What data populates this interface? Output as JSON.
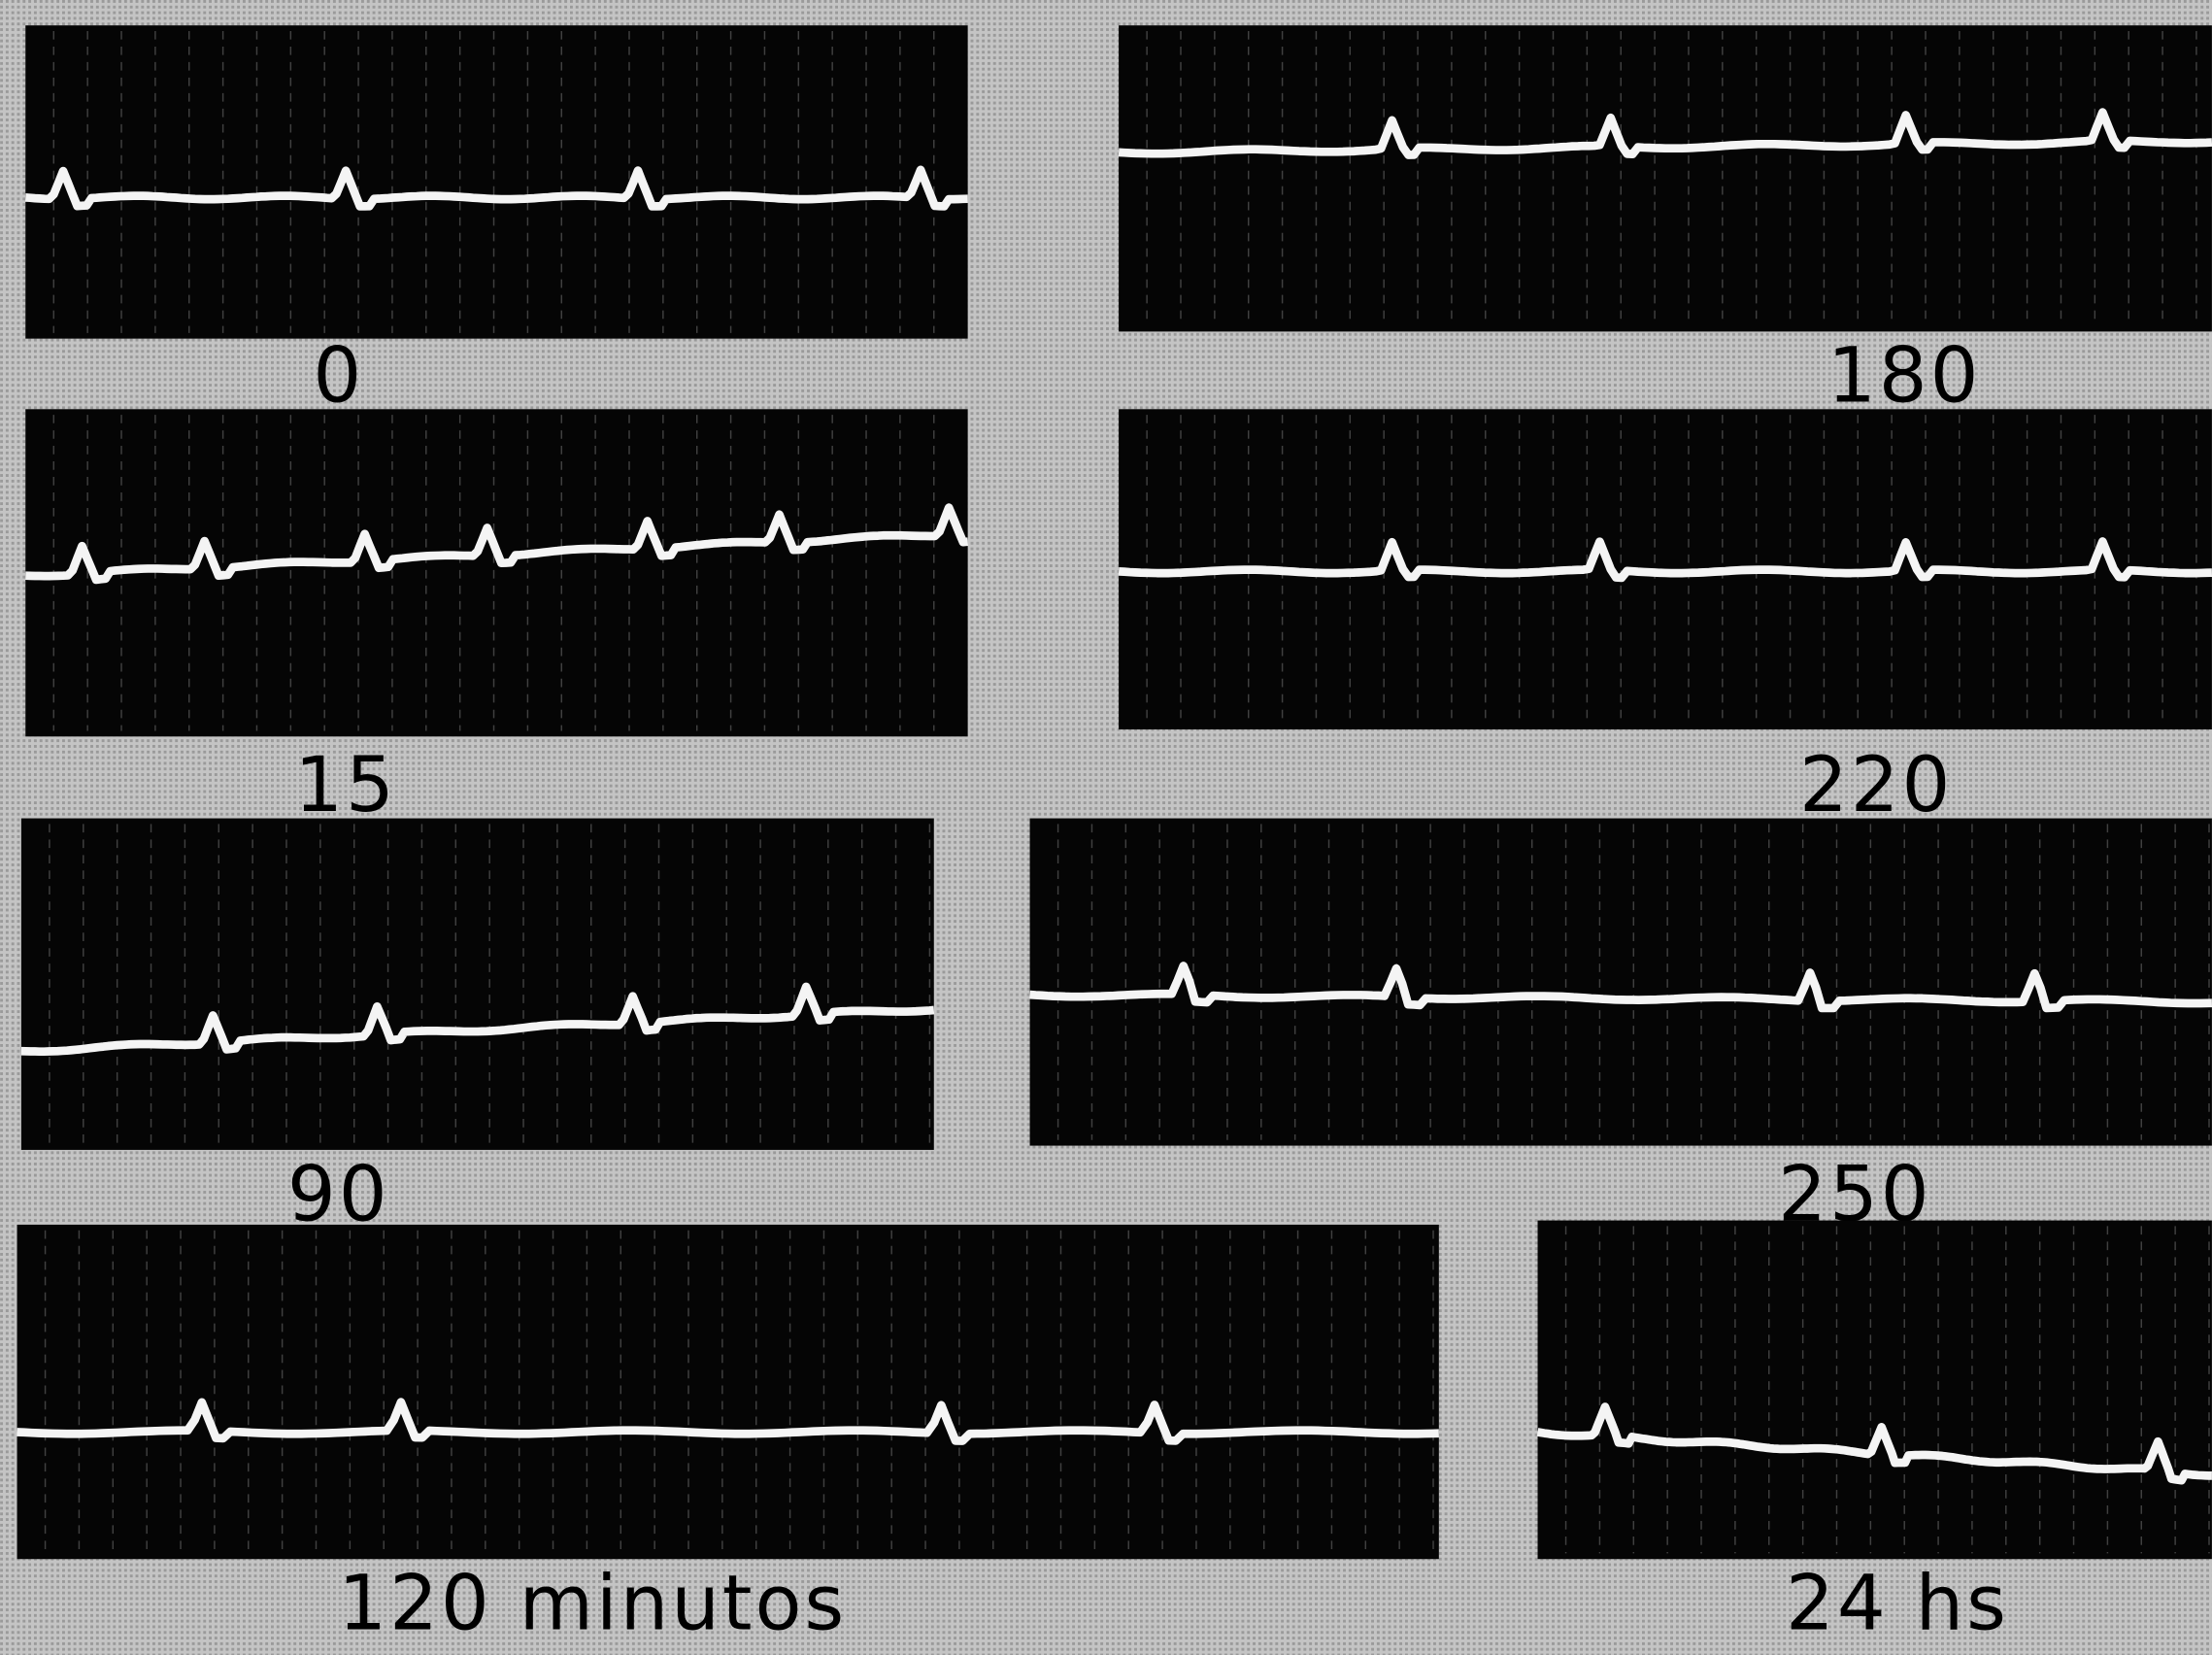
{
  "panels": [
    {
      "label": "0"
    },
    {
      "label": "180"
    },
    {
      "label": "15"
    },
    {
      "label": "220"
    },
    {
      "label": "90"
    },
    {
      "label": "250"
    },
    {
      "label": "120 minutos"
    },
    {
      "label": "24 hs"
    }
  ]
}
